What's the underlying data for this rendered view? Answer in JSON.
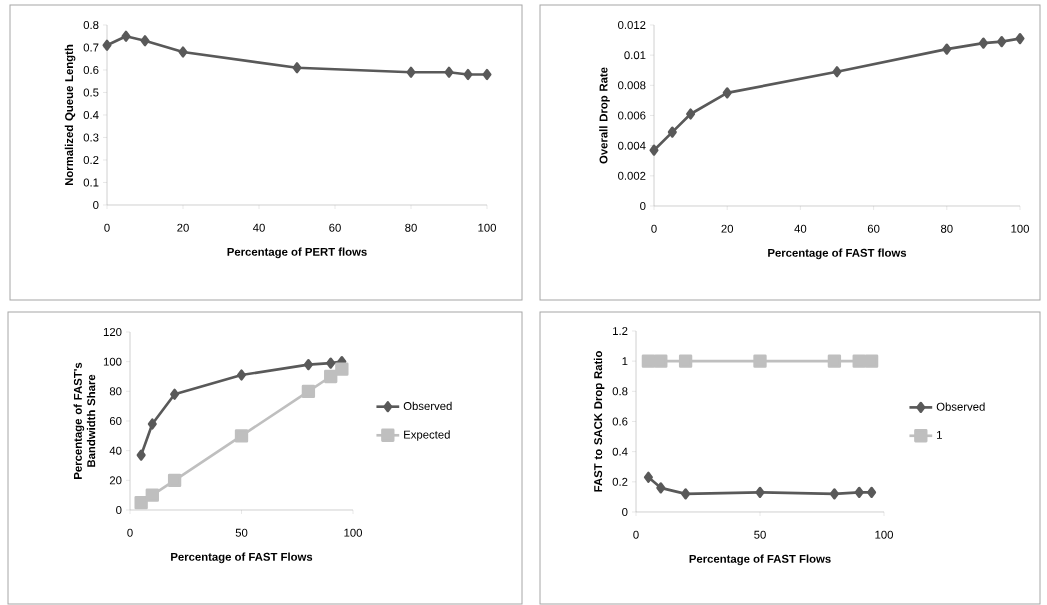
{
  "chart_data": [
    {
      "type": "line",
      "xlabel": "Percentage of PERT flows",
      "ylabel": "Normalized Queue Length",
      "x": [
        0,
        5,
        10,
        20,
        50,
        80,
        90,
        95,
        100
      ],
      "xlim": [
        0,
        100
      ],
      "xticks": [
        0,
        20,
        40,
        60,
        80,
        100
      ],
      "ylim": [
        0,
        0.8
      ],
      "yticks": [
        0,
        0.1,
        0.2,
        0.3,
        0.4,
        0.5,
        0.6,
        0.7,
        0.8
      ],
      "marker": "diamond",
      "line_style": "solid",
      "series": [
        {
          "color": "#595959",
          "values": [
            0.71,
            0.75,
            0.73,
            0.68,
            0.61,
            0.59,
            0.59,
            0.58,
            0.58
          ]
        }
      ]
    },
    {
      "type": "line",
      "xlabel": "Percentage of FAST flows",
      "ylabel": "Overall Drop Rate",
      "x": [
        0,
        5,
        10,
        20,
        50,
        80,
        90,
        95,
        100
      ],
      "xlim": [
        0,
        100
      ],
      "xticks": [
        0,
        20,
        40,
        60,
        80,
        100
      ],
      "ylim": [
        0,
        0.012
      ],
      "yticks": [
        0,
        0.002,
        0.004,
        0.006,
        0.008,
        0.01,
        0.012
      ],
      "marker": "diamond",
      "line_style": "solid",
      "series": [
        {
          "color": "#595959",
          "values": [
            0.0037,
            0.0049,
            0.0061,
            0.0075,
            0.0089,
            0.0104,
            0.0108,
            0.0109,
            0.0111
          ]
        }
      ]
    },
    {
      "type": "line",
      "xlabel": "Percentage of FAST Flows",
      "ylabel": "Percentage of FAST's Bandwidth Share",
      "x": [
        5,
        10,
        20,
        50,
        80,
        90,
        95
      ],
      "xlim": [
        0,
        100
      ],
      "xticks": [
        0,
        50,
        100
      ],
      "ylim": [
        0,
        120
      ],
      "yticks": [
        0,
        20,
        40,
        60,
        80,
        100,
        120
      ],
      "legend": "right",
      "line_style": "solid",
      "series": [
        {
          "name": "Observed",
          "color": "#595959",
          "marker": "diamond",
          "values": [
            37,
            58,
            78,
            91,
            98,
            99,
            100
          ]
        },
        {
          "name": "Expected",
          "color": "#bfbfbf",
          "marker": "square",
          "values": [
            5,
            10,
            20,
            50,
            80,
            90,
            95
          ]
        }
      ]
    },
    {
      "type": "line",
      "xlabel": "Percentage of FAST Flows",
      "ylabel": "FAST to SACK Drop Ratio",
      "x": [
        5,
        10,
        20,
        50,
        80,
        90,
        95
      ],
      "xlim": [
        0,
        100
      ],
      "xticks": [
        0,
        50,
        100
      ],
      "ylim": [
        0,
        1.2
      ],
      "yticks": [
        0,
        0.2,
        0.4,
        0.6,
        0.8,
        1,
        1.2
      ],
      "legend": "right",
      "line_style": "solid",
      "series": [
        {
          "name": "Observed",
          "color": "#595959",
          "marker": "diamond",
          "values": [
            0.23,
            0.16,
            0.12,
            0.13,
            0.12,
            0.13,
            0.13
          ]
        },
        {
          "name": "1",
          "color": "#bfbfbf",
          "marker": "square",
          "values": [
            1,
            1,
            1,
            1,
            1,
            1,
            1
          ]
        }
      ]
    }
  ]
}
